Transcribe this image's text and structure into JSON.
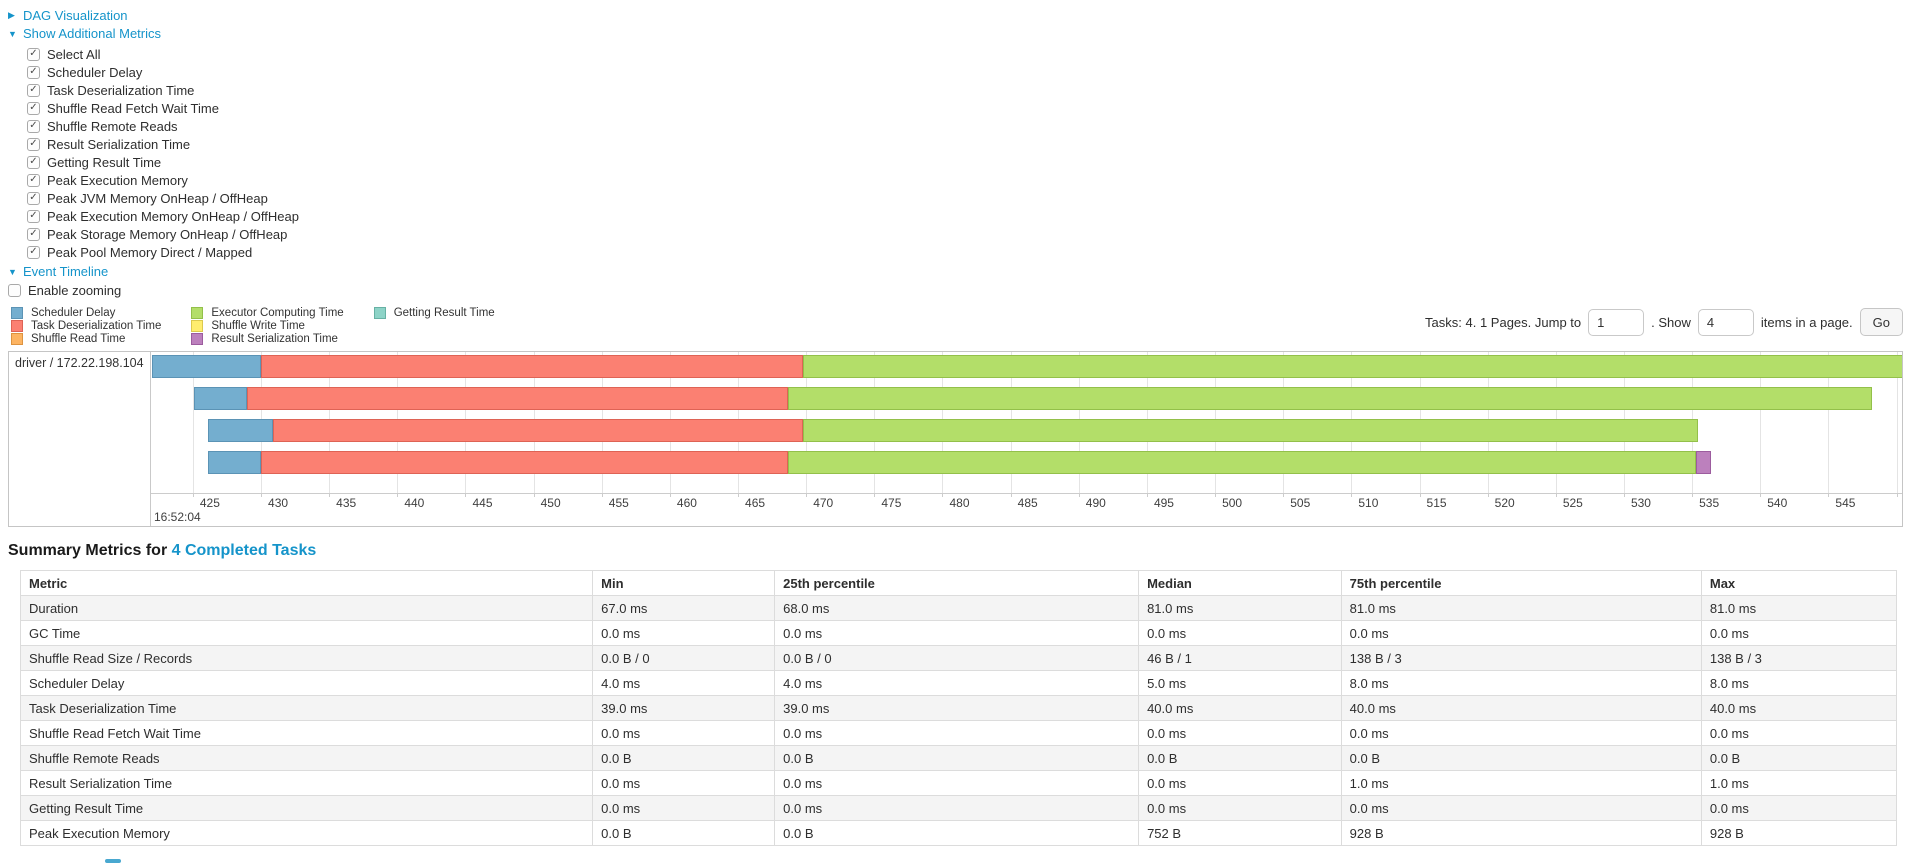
{
  "accent_color": "#1594ca",
  "sections": {
    "dag": {
      "label": "DAG Visualization",
      "collapsed": true
    },
    "additional_metrics": {
      "label": "Show Additional Metrics",
      "collapsed": false
    },
    "event_timeline": {
      "label": "Event Timeline",
      "collapsed": false
    }
  },
  "metrics_panel": {
    "items": [
      "Select All",
      "Scheduler Delay",
      "Task Deserialization Time",
      "Shuffle Read Fetch Wait Time",
      "Shuffle Remote Reads",
      "Result Serialization Time",
      "Getting Result Time",
      "Peak Execution Memory",
      "Peak JVM Memory OnHeap / OffHeap",
      "Peak Execution Memory OnHeap / OffHeap",
      "Peak Storage Memory OnHeap / OffHeap",
      "Peak Pool Memory Direct / Mapped"
    ],
    "all_checked": true
  },
  "enable_zooming": {
    "label": "Enable zooming",
    "checked": false
  },
  "legend": {
    "columns": [
      [
        {
          "key": "scheduler-delay",
          "label": "Scheduler Delay",
          "color": "#74AECF",
          "border": "#5B93B5"
        },
        {
          "key": "task-deserialization-time",
          "label": "Task Deserialization Time",
          "color": "#FB8072",
          "border": "#DE6355"
        },
        {
          "key": "shuffle-read-time",
          "label": "Shuffle Read Time",
          "color": "#FDB462",
          "border": "#DD9340"
        }
      ],
      [
        {
          "key": "executor-computing-time",
          "label": "Executor Computing Time",
          "color": "#B3DE69",
          "border": "#93C04A"
        },
        {
          "key": "shuffle-write-time",
          "label": "Shuffle Write Time",
          "color": "#FFED6F",
          "border": "#DCC94E"
        },
        {
          "key": "result-serialization-time",
          "label": "Result Serialization Time",
          "color": "#BC80BD",
          "border": "#9C5C9E"
        }
      ],
      [
        {
          "key": "getting-result-time",
          "label": "Getting Result Time",
          "color": "#8DD3C7",
          "border": "#67B1A4"
        }
      ]
    ]
  },
  "pagination": {
    "summary_text": "Tasks: 4. 1 Pages. Jump to",
    "jump_value": "1",
    "show_label": ". Show",
    "show_value": "4",
    "suffix_text": "items in a page.",
    "go_label": "Go"
  },
  "chart_data": {
    "type": "timeline",
    "group_label": "driver / 172.22.198.104",
    "axis": {
      "min": 422.0,
      "max": 550.4,
      "tick_start": 425,
      "tick_step": 5,
      "tick_end": 550,
      "unit": "ms",
      "major_label": "16:52:04"
    },
    "tasks": [
      {
        "segments": [
          {
            "key": "scheduler-delay",
            "start": 422.0,
            "end": 430.0
          },
          {
            "key": "task-deserialization-time",
            "start": 430.0,
            "end": 469.8
          },
          {
            "key": "executor-computing-time",
            "start": 469.8,
            "end": 550.6
          }
        ]
      },
      {
        "segments": [
          {
            "key": "scheduler-delay",
            "start": 425.1,
            "end": 429.0
          },
          {
            "key": "task-deserialization-time",
            "start": 429.0,
            "end": 468.7
          },
          {
            "key": "executor-computing-time",
            "start": 468.7,
            "end": 548.2
          }
        ]
      },
      {
        "segments": [
          {
            "key": "scheduler-delay",
            "start": 426.1,
            "end": 430.9
          },
          {
            "key": "task-deserialization-time",
            "start": 430.9,
            "end": 469.8
          },
          {
            "key": "executor-computing-time",
            "start": 469.8,
            "end": 535.4
          }
        ]
      },
      {
        "segments": [
          {
            "key": "scheduler-delay",
            "start": 426.1,
            "end": 430.0
          },
          {
            "key": "task-deserialization-time",
            "start": 430.0,
            "end": 468.7
          },
          {
            "key": "executor-computing-time",
            "start": 468.7,
            "end": 535.3
          },
          {
            "key": "result-serialization-time",
            "start": 535.3,
            "end": 536.4
          }
        ]
      }
    ]
  },
  "summary_table": {
    "title_prefix": "Summary Metrics for",
    "title_link": "4 Completed Tasks",
    "columns": [
      "Metric",
      "Min",
      "25th percentile",
      "Median",
      "75th percentile",
      "Max"
    ],
    "rows": [
      [
        "Duration",
        "67.0 ms",
        "68.0 ms",
        "81.0 ms",
        "81.0 ms",
        "81.0 ms"
      ],
      [
        "GC Time",
        "0.0 ms",
        "0.0 ms",
        "0.0 ms",
        "0.0 ms",
        "0.0 ms"
      ],
      [
        "Shuffle Read Size / Records",
        "0.0 B / 0",
        "0.0 B / 0",
        "46 B / 1",
        "138 B / 3",
        "138 B / 3"
      ],
      [
        "Scheduler Delay",
        "4.0 ms",
        "4.0 ms",
        "5.0 ms",
        "8.0 ms",
        "8.0 ms"
      ],
      [
        "Task Deserialization Time",
        "39.0 ms",
        "39.0 ms",
        "40.0 ms",
        "40.0 ms",
        "40.0 ms"
      ],
      [
        "Shuffle Read Fetch Wait Time",
        "0.0 ms",
        "0.0 ms",
        "0.0 ms",
        "0.0 ms",
        "0.0 ms"
      ],
      [
        "Shuffle Remote Reads",
        "0.0 B",
        "0.0 B",
        "0.0 B",
        "0.0 B",
        "0.0 B"
      ],
      [
        "Result Serialization Time",
        "0.0 ms",
        "0.0 ms",
        "0.0 ms",
        "1.0 ms",
        "1.0 ms"
      ],
      [
        "Getting Result Time",
        "0.0 ms",
        "0.0 ms",
        "0.0 ms",
        "0.0 ms",
        "0.0 ms"
      ],
      [
        "Peak Execution Memory",
        "0.0 B",
        "0.0 B",
        "752 B",
        "928 B",
        "928 B"
      ]
    ]
  }
}
